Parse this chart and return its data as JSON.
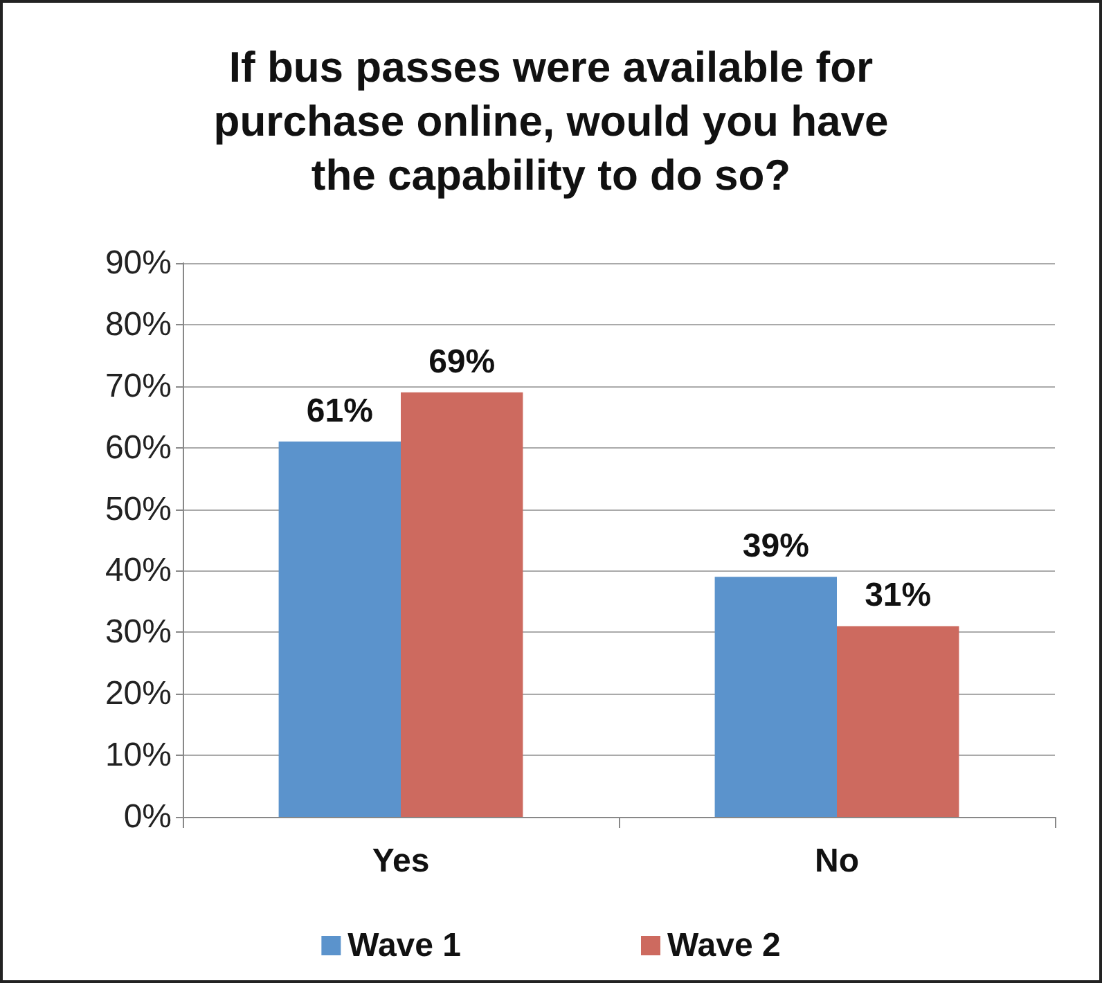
{
  "chart_data": {
    "type": "bar",
    "title": "If bus passes were available for\npurchase online, would you have\nthe capability to do so?",
    "categories": [
      "Yes",
      "No"
    ],
    "series": [
      {
        "name": "Wave 1",
        "color": "#5b93cc",
        "values": [
          61,
          39
        ],
        "value_labels": [
          "61%",
          "39%"
        ]
      },
      {
        "name": "Wave 2",
        "color": "#cd6a5f",
        "values": [
          69,
          31
        ],
        "value_labels": [
          "69%",
          "31%"
        ]
      }
    ],
    "ylim": [
      0,
      90
    ],
    "yticks": [
      {
        "value": 0,
        "label": "0%"
      },
      {
        "value": 10,
        "label": "10%"
      },
      {
        "value": 20,
        "label": "20%"
      },
      {
        "value": 30,
        "label": "30%"
      },
      {
        "value": 40,
        "label": "40%"
      },
      {
        "value": 50,
        "label": "50%"
      },
      {
        "value": 60,
        "label": "60%"
      },
      {
        "value": 70,
        "label": "70%"
      },
      {
        "value": 80,
        "label": "80%"
      },
      {
        "value": 90,
        "label": "90%"
      }
    ],
    "grid": "y",
    "legend": "bottom"
  }
}
